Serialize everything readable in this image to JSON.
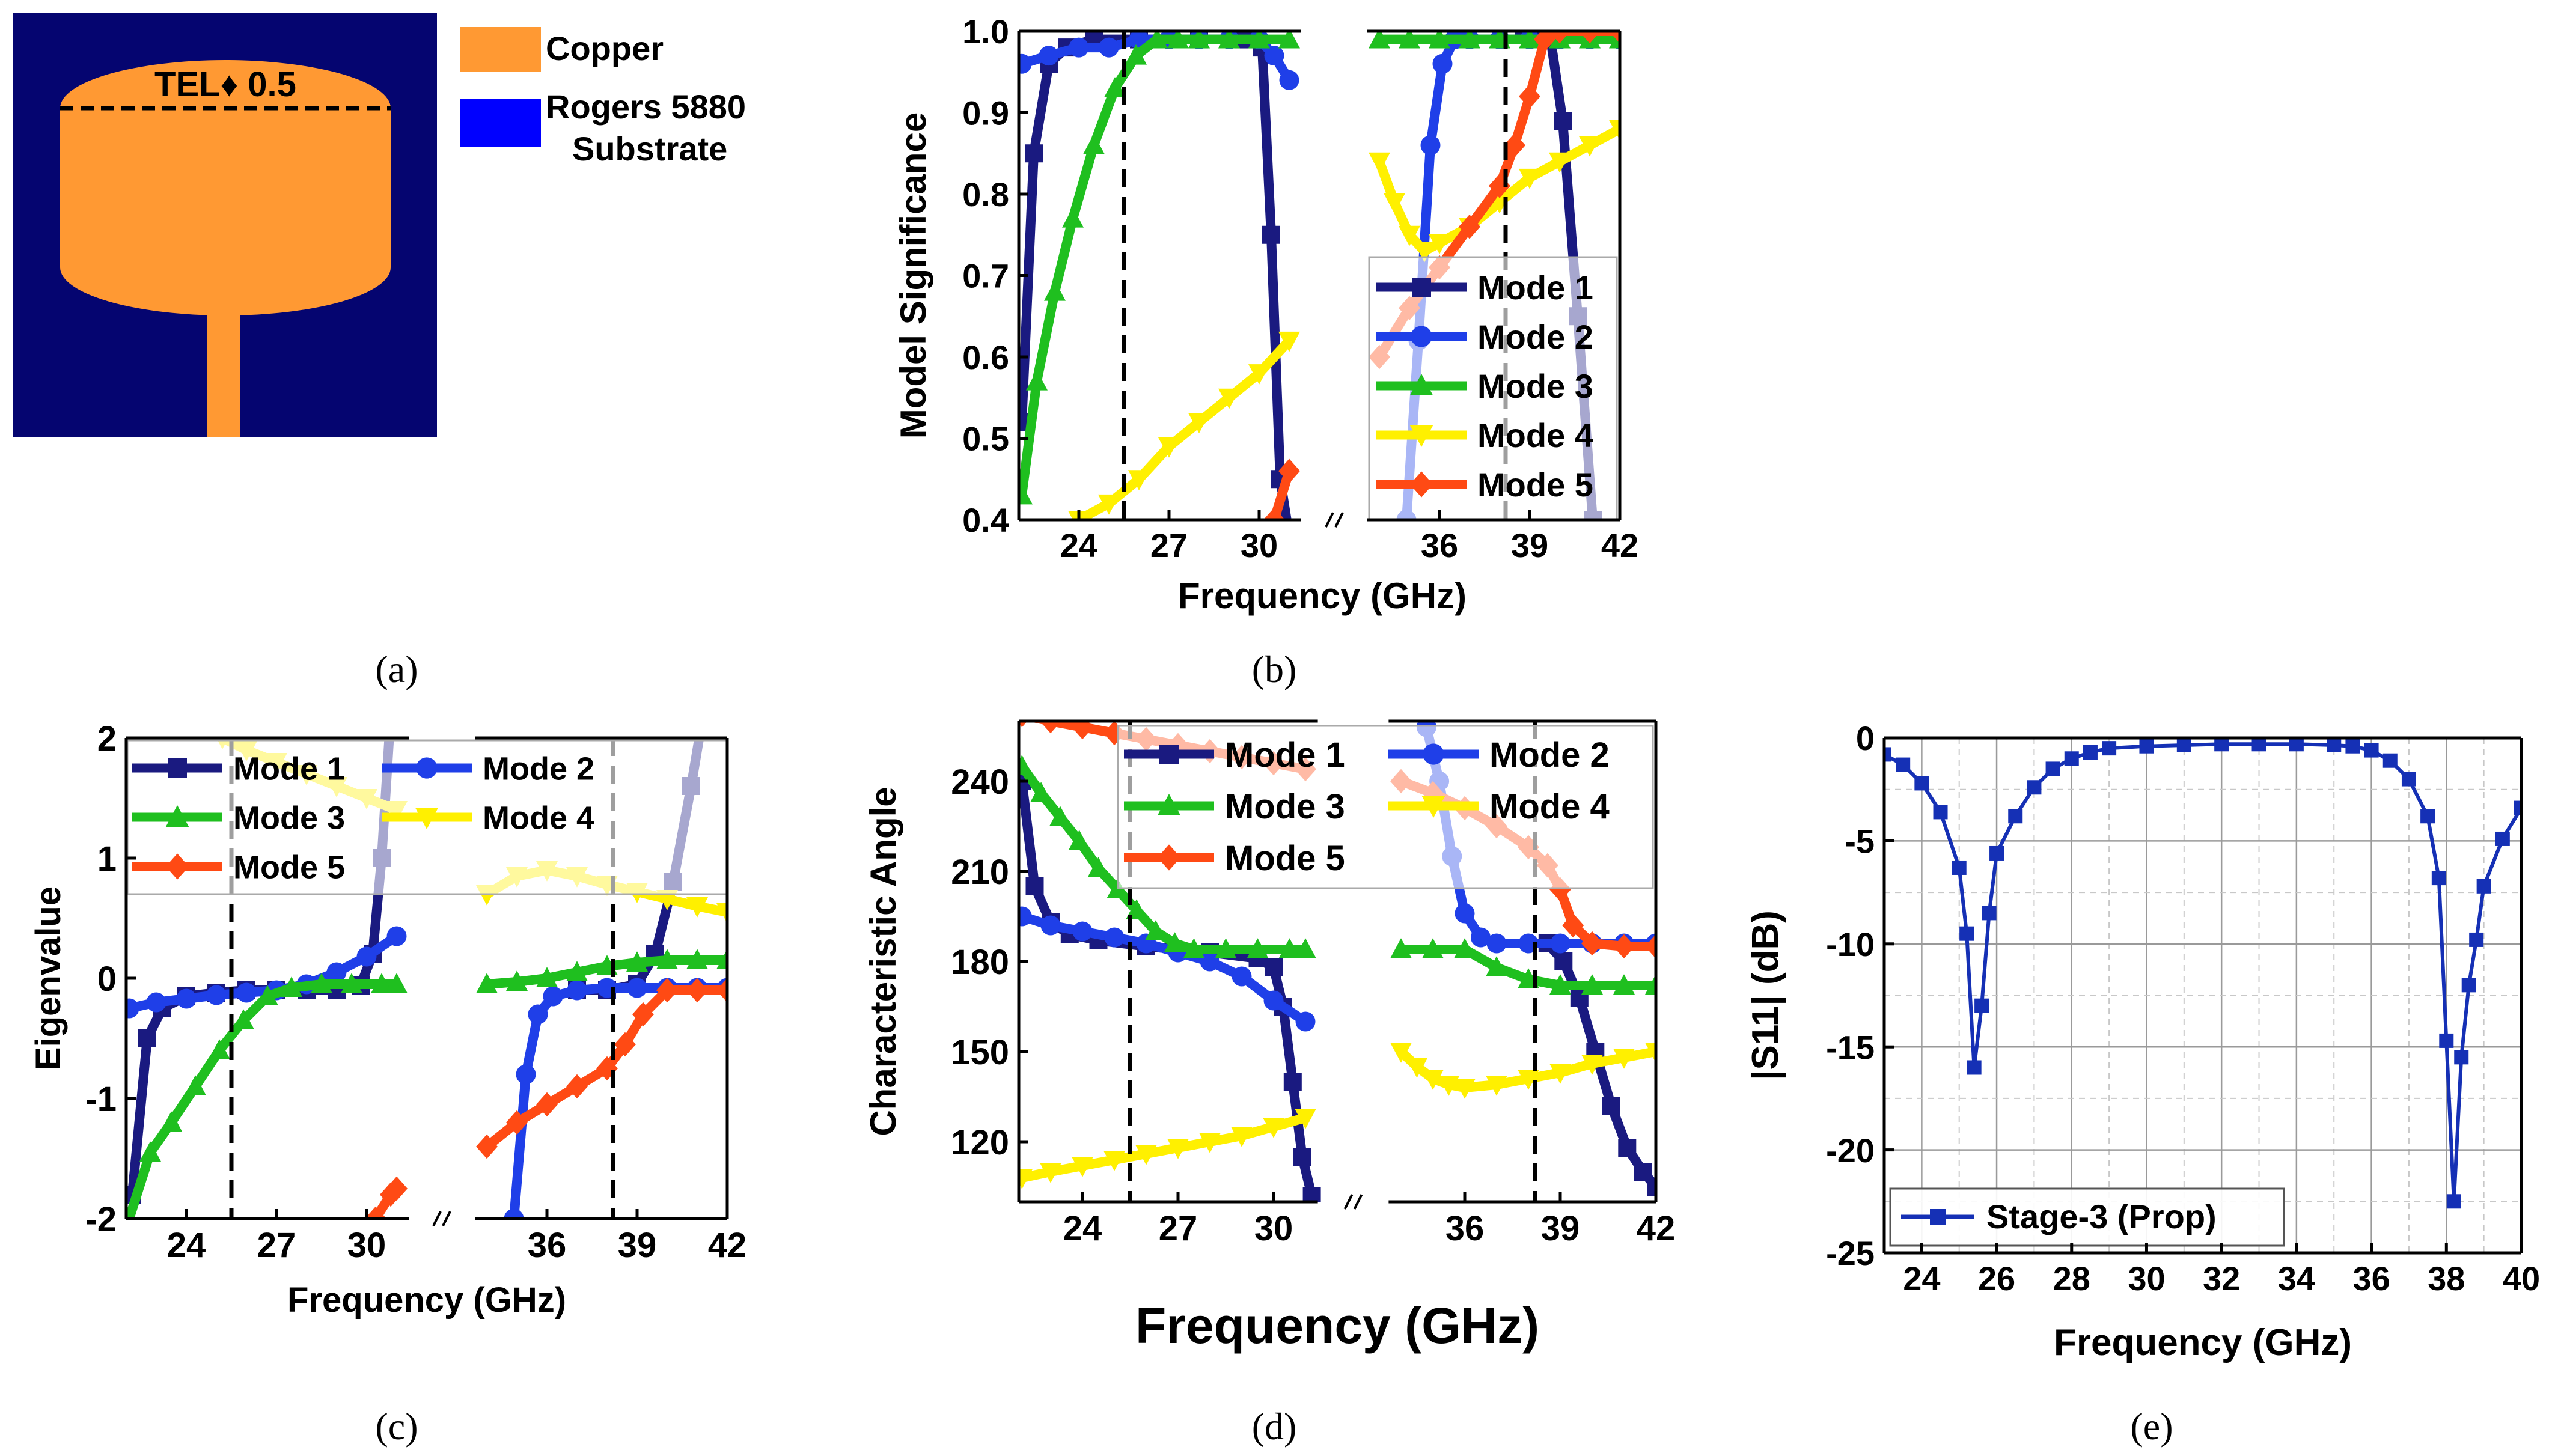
{
  "panel_labels": {
    "a": "(a)",
    "b": "(b)",
    "c": "(c)",
    "d": "(d)",
    "e": "(e)"
  },
  "colors": {
    "copper": "#FF9933",
    "substrate_panel": "#050570",
    "substrate_legend": "#0000FF",
    "mode1": "#1A1A80",
    "mode2": "#1F3FE8",
    "mode3": "#1FBF1F",
    "mode4": "#FFF000",
    "mode5": "#FF4A14",
    "s11": "#1530B5"
  },
  "antenna": {
    "tel_label": "TEL♦ 0.5",
    "legend": {
      "copper": "Copper",
      "substrate_line1": "Rogers 5880",
      "substrate_line2": "Substrate"
    }
  },
  "chart_data": [
    {
      "id": "b",
      "type": "line",
      "xlabel": "Frequency (GHz)",
      "ylabel": "Model Significance",
      "xlim": [
        22,
        42
      ],
      "ylim": [
        0.4,
        1.0
      ],
      "axis_break_between": [
        31.2,
        33.8
      ],
      "xticks": [
        24,
        27,
        30,
        36,
        39,
        42
      ],
      "yticks": [
        0.4,
        0.5,
        0.6,
        0.7,
        0.8,
        0.9,
        1.0
      ],
      "ytick_labels": [
        "0.4",
        "0.5",
        "0.6",
        "0.7",
        "0.8",
        "0.9",
        "1.0"
      ],
      "vlines": [
        25.5,
        38.2
      ],
      "legend": [
        "Mode 1",
        "Mode 2",
        "Mode 3",
        "Mode 4",
        "Mode 5"
      ],
      "series": [
        {
          "name": "Mode 1",
          "marker": "square",
          "x": [
            22.1,
            22.5,
            23.0,
            23.6,
            24.5,
            26,
            28,
            29.5,
            30.1,
            30.4,
            30.7,
            31.0,
            38.8,
            39.3,
            39.7,
            40.1,
            40.6,
            41.1
          ],
          "y": [
            0.52,
            0.85,
            0.96,
            0.98,
            0.99,
            0.99,
            0.99,
            0.99,
            0.98,
            0.75,
            0.45,
            0.38,
            1.0,
            1.0,
            0.99,
            0.89,
            0.65,
            0.4
          ]
        },
        {
          "name": "Mode 2",
          "marker": "circle",
          "x": [
            22.1,
            23,
            24,
            25,
            26,
            27,
            28,
            29,
            30,
            30.5,
            31.0,
            34.9,
            35.3,
            35.7,
            36.1,
            36.5,
            37,
            38,
            39,
            40,
            41,
            42
          ],
          "y": [
            0.96,
            0.97,
            0.98,
            0.98,
            0.99,
            0.99,
            0.99,
            0.99,
            0.99,
            0.97,
            0.94,
            0.4,
            0.62,
            0.86,
            0.96,
            0.99,
            0.99,
            0.99,
            0.99,
            0.99,
            0.99,
            0.99
          ]
        },
        {
          "name": "Mode 3",
          "marker": "triangle",
          "x": [
            22.1,
            22.6,
            23.2,
            23.8,
            24.5,
            25.2,
            25.9,
            26.6,
            27.3,
            28,
            29,
            30,
            31,
            34,
            35,
            36,
            37,
            38,
            39,
            40,
            41,
            42
          ],
          "y": [
            0.43,
            0.57,
            0.68,
            0.77,
            0.86,
            0.93,
            0.97,
            0.99,
            0.99,
            0.99,
            0.99,
            0.99,
            0.99,
            0.99,
            0.99,
            0.99,
            0.99,
            0.99,
            0.99,
            0.99,
            0.99,
            0.99
          ]
        },
        {
          "name": "Mode 4",
          "marker": "triangle-down",
          "x": [
            24,
            25,
            26,
            27,
            28,
            29,
            30,
            31,
            34,
            34.5,
            35,
            35.5,
            36,
            37,
            38,
            39,
            40,
            41,
            42
          ],
          "y": [
            0.4,
            0.42,
            0.45,
            0.49,
            0.52,
            0.55,
            0.58,
            0.62,
            0.84,
            0.79,
            0.75,
            0.73,
            0.74,
            0.76,
            0.79,
            0.82,
            0.84,
            0.86,
            0.88
          ]
        },
        {
          "name": "Mode 5",
          "marker": "diamond",
          "x": [
            30.5,
            31,
            34,
            35,
            36,
            37,
            38,
            38.5,
            39,
            39.5,
            40,
            41,
            42
          ],
          "y": [
            0.4,
            0.46,
            0.6,
            0.66,
            0.71,
            0.76,
            0.81,
            0.86,
            0.92,
            0.99,
            1.0,
            1.0,
            1.0
          ]
        }
      ]
    },
    {
      "id": "c",
      "type": "line",
      "xlabel": "Frequency (GHz)",
      "ylabel": "Eigenvalue",
      "xlim": [
        22,
        42
      ],
      "ylim": [
        -2,
        2
      ],
      "axis_break_between": [
        31.2,
        33.8
      ],
      "xticks": [
        24,
        27,
        30,
        36,
        39,
        42
      ],
      "yticks": [
        -2,
        -1,
        0,
        1,
        2
      ],
      "ytick_labels": [
        "-2",
        "-1",
        "0",
        "1",
        "2"
      ],
      "vlines": [
        25.5,
        38.2
      ],
      "legend": [
        "Mode 1",
        "Mode 2",
        "Mode 3",
        "Mode 4",
        "Mode 5"
      ],
      "series": [
        {
          "name": "Mode 1",
          "marker": "square",
          "x": [
            22.2,
            22.7,
            23.2,
            24,
            25,
            26,
            27,
            28,
            29,
            29.8,
            30.2,
            30.5,
            30.8,
            37,
            38,
            39,
            39.6,
            40.2,
            40.8,
            41.2
          ],
          "y": [
            -1.8,
            -0.5,
            -0.25,
            -0.15,
            -0.12,
            -0.1,
            -0.1,
            -0.1,
            -0.1,
            -0.06,
            0.2,
            1.0,
            2.2,
            -0.1,
            -0.1,
            -0.05,
            0.2,
            0.8,
            1.6,
            2.2
          ]
        },
        {
          "name": "Mode 2",
          "marker": "circle",
          "x": [
            22.1,
            23,
            24,
            25,
            26,
            27,
            28,
            29,
            30,
            31,
            34.9,
            35.3,
            35.7,
            36.2,
            37,
            38,
            39,
            40,
            41,
            42
          ],
          "y": [
            -0.25,
            -0.2,
            -0.17,
            -0.14,
            -0.12,
            -0.1,
            -0.05,
            0.05,
            0.18,
            0.35,
            -2.0,
            -0.8,
            -0.3,
            -0.15,
            -0.1,
            -0.08,
            -0.08,
            -0.08,
            -0.08,
            -0.08
          ]
        },
        {
          "name": "Mode 3",
          "marker": "triangle",
          "x": [
            22.1,
            22.8,
            23.5,
            24.3,
            25.1,
            25.9,
            26.7,
            27.5,
            28.5,
            29.5,
            30.5,
            31,
            34,
            35,
            36,
            37,
            38,
            39,
            40,
            41,
            42
          ],
          "y": [
            -2.0,
            -1.45,
            -1.2,
            -0.9,
            -0.6,
            -0.35,
            -0.15,
            -0.08,
            -0.05,
            -0.05,
            -0.05,
            -0.05,
            -0.05,
            -0.03,
            0.0,
            0.05,
            0.1,
            0.13,
            0.15,
            0.15,
            0.15
          ]
        },
        {
          "name": "Mode 4",
          "marker": "triangle-down",
          "x": [
            25.2,
            26,
            27,
            28,
            29,
            30,
            31,
            34,
            35,
            36,
            37,
            38,
            39,
            40,
            41,
            42
          ],
          "y": [
            2.0,
            1.9,
            1.8,
            1.7,
            1.6,
            1.5,
            1.4,
            0.7,
            0.85,
            0.9,
            0.85,
            0.78,
            0.72,
            0.66,
            0.6,
            0.55
          ]
        },
        {
          "name": "Mode 5",
          "marker": "diamond",
          "x": [
            30.3,
            30.8,
            31,
            34,
            35,
            36,
            37,
            38,
            38.6,
            39.2,
            40,
            41,
            42
          ],
          "y": [
            -2.0,
            -1.8,
            -1.75,
            -1.4,
            -1.2,
            -1.05,
            -0.9,
            -0.75,
            -0.55,
            -0.3,
            -0.1,
            -0.1,
            -0.1
          ]
        }
      ]
    },
    {
      "id": "d",
      "type": "line",
      "xlabel": "Frequency (GHz)",
      "ylabel": "Characteristic Angle",
      "xlim": [
        22,
        42
      ],
      "ylim": [
        100,
        260
      ],
      "axis_break_between": [
        31.2,
        33.8
      ],
      "xticks": [
        24,
        27,
        30,
        36,
        39,
        42
      ],
      "yticks": [
        120,
        150,
        180,
        210,
        240
      ],
      "ytick_labels": [
        "120",
        "150",
        "180",
        "210",
        "240"
      ],
      "vlines": [
        25.5,
        38.2
      ],
      "legend": [
        "Mode 1",
        "Mode 2",
        "Mode 3",
        "Mode 4",
        "Mode 5"
      ],
      "series": [
        {
          "name": "Mode 1",
          "marker": "square",
          "x": [
            22.1,
            22.5,
            23,
            23.6,
            24.5,
            26,
            28,
            29.5,
            30,
            30.3,
            30.6,
            30.9,
            31.2,
            38.6,
            39.1,
            39.6,
            40.1,
            40.6,
            41.1,
            41.6,
            42
          ],
          "y": [
            240,
            205,
            193,
            189,
            187,
            185,
            183,
            181,
            178,
            165,
            140,
            115,
            102,
            186,
            180,
            168,
            150,
            132,
            118,
            110,
            105
          ]
        },
        {
          "name": "Mode 2",
          "marker": "circle",
          "x": [
            22.1,
            23,
            24,
            25,
            26,
            27,
            28,
            29,
            30,
            31,
            34.8,
            35.2,
            35.6,
            36,
            36.5,
            37,
            38,
            39,
            40,
            41,
            42
          ],
          "y": [
            195,
            192,
            190,
            188,
            186,
            183,
            180,
            175,
            167,
            160,
            258,
            240,
            215,
            196,
            188,
            186,
            186,
            186,
            186,
            186,
            186
          ]
        },
        {
          "name": "Mode 3",
          "marker": "triangle",
          "x": [
            22.1,
            22.7,
            23.3,
            23.9,
            24.5,
            25.1,
            25.7,
            26.3,
            26.9,
            27.5,
            28.5,
            29.5,
            30.5,
            31,
            34,
            35,
            36,
            37,
            38,
            39,
            40,
            41,
            42
          ],
          "y": [
            245,
            236,
            228,
            220,
            211,
            204,
            197,
            190,
            186,
            184,
            184,
            184,
            184,
            184,
            184,
            184,
            184,
            178,
            174,
            172,
            172,
            172,
            172
          ]
        },
        {
          "name": "Mode 4",
          "marker": "triangle-down",
          "x": [
            22.1,
            23,
            24,
            25,
            26,
            27,
            28,
            29,
            30,
            31,
            34,
            34.5,
            35,
            35.5,
            36,
            37,
            38,
            39,
            40,
            41,
            42
          ],
          "y": [
            108,
            110,
            112,
            114,
            116,
            118,
            120,
            122,
            125,
            128,
            150,
            145,
            141,
            139,
            138,
            139,
            141,
            143,
            146,
            148,
            150
          ]
        },
        {
          "name": "Mode 5",
          "marker": "diamond",
          "x": [
            22.1,
            23,
            24,
            25,
            26,
            27,
            28,
            29,
            30,
            31,
            34,
            35,
            36,
            37,
            38,
            38.6,
            39,
            39.4,
            40,
            41,
            42
          ],
          "y": [
            262,
            260,
            258,
            256,
            254,
            252,
            250,
            248,
            246,
            244,
            240,
            236,
            231,
            225,
            218,
            212,
            204,
            192,
            186,
            185,
            185
          ]
        }
      ]
    },
    {
      "id": "e",
      "type": "line",
      "xlabel": "Frequency (GHz)",
      "ylabel": "|S11| (dB)",
      "xlim": [
        23,
        40
      ],
      "ylim": [
        -25,
        0
      ],
      "grid": true,
      "xticks": [
        24,
        26,
        28,
        30,
        32,
        34,
        36,
        38,
        40
      ],
      "yticks": [
        -25,
        -20,
        -15,
        -10,
        -5,
        0
      ],
      "ytick_labels": [
        "-25",
        "-20",
        "-15",
        "-10",
        "-5",
        "0"
      ],
      "legend": [
        "Stage-3 (Prop)"
      ],
      "series": [
        {
          "name": "Stage-3 (Prop)",
          "marker": "square",
          "x": [
            23,
            23.5,
            24,
            24.5,
            25,
            25.2,
            25.4,
            25.6,
            25.8,
            26,
            26.5,
            27,
            27.5,
            28,
            28.5,
            29,
            30,
            31,
            32,
            33,
            34,
            35,
            35.5,
            36,
            36.5,
            37,
            37.5,
            37.8,
            38,
            38.2,
            38.4,
            38.6,
            38.8,
            39,
            39.5,
            40
          ],
          "y": [
            -0.8,
            -1.3,
            -2.2,
            -3.6,
            -6.3,
            -9.5,
            -16.0,
            -13.0,
            -8.5,
            -5.6,
            -3.8,
            -2.4,
            -1.5,
            -1.0,
            -0.7,
            -0.5,
            -0.4,
            -0.35,
            -0.3,
            -0.3,
            -0.3,
            -0.35,
            -0.4,
            -0.6,
            -1.1,
            -2.0,
            -3.8,
            -6.8,
            -14.7,
            -22.5,
            -15.5,
            -12.0,
            -9.8,
            -7.2,
            -4.9,
            -3.4
          ]
        }
      ]
    }
  ]
}
